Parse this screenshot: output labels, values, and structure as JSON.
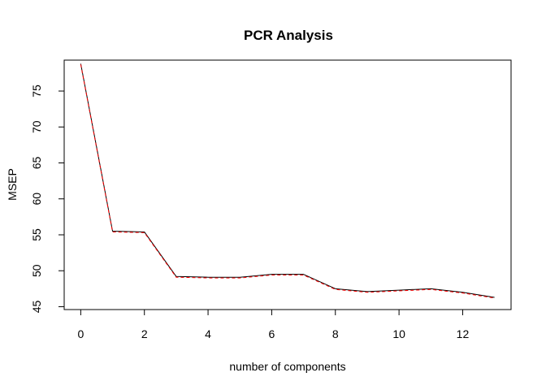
{
  "chart_data": {
    "type": "line",
    "title": "PCR Analysis",
    "xlabel": "number of components",
    "ylabel": "MSEP",
    "xlim": [
      -0.52,
      13.52
    ],
    "ylim": [
      44.6,
      79.3
    ],
    "x_ticks": [
      0,
      2,
      4,
      6,
      8,
      10,
      12
    ],
    "y_ticks": [
      45,
      50,
      55,
      60,
      65,
      70,
      75
    ],
    "grid": false,
    "legend": "none",
    "series": [
      {
        "style": "solid",
        "color": "#000000",
        "x": [
          0,
          1,
          2,
          3,
          4,
          5,
          6,
          7,
          8,
          9,
          10,
          11,
          12,
          13
        ],
        "values": [
          78.8,
          55.5,
          55.4,
          49.2,
          49.1,
          49.1,
          49.5,
          49.5,
          47.5,
          47.1,
          47.3,
          47.5,
          47.0,
          46.3
        ]
      },
      {
        "style": "dashed",
        "color": "#ff0000",
        "x": [
          0,
          1,
          2,
          3,
          4,
          5,
          6,
          7,
          8,
          9,
          10,
          11,
          12,
          13
        ],
        "values": [
          78.7,
          55.4,
          55.3,
          49.1,
          49.0,
          49.0,
          49.4,
          49.4,
          47.4,
          47.0,
          47.2,
          47.4,
          46.9,
          46.2
        ]
      }
    ]
  }
}
